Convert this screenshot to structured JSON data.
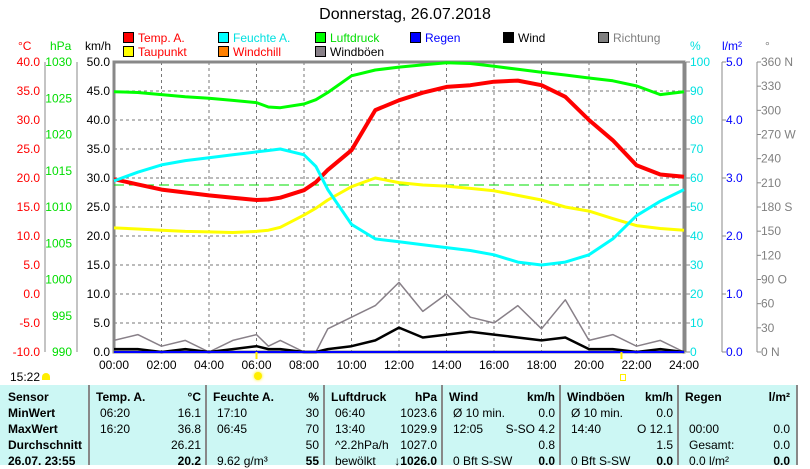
{
  "title": "Donnerstag, 26.07.2018",
  "legend": [
    {
      "label": "Temp. A.",
      "color": "#ff0000",
      "text_color": "#ff0000"
    },
    {
      "label": "Taupunkt",
      "color": "#ffff00",
      "text_color": "#ff0000"
    },
    {
      "label": "Feuchte A.",
      "color": "#00ffff",
      "text_color": "#00e0e0"
    },
    {
      "label": "Windchill",
      "color": "#ff8000",
      "text_color": "#ff0000"
    },
    {
      "label": "Luftdruck",
      "color": "#00ff00",
      "text_color": "#00dd00"
    },
    {
      "label": "Windböen",
      "color": "#888088",
      "text_color": "#000000"
    },
    {
      "label": "Regen",
      "color": "#0000ff",
      "text_color": "#0000ff"
    },
    {
      "label": "Wind",
      "color": "#000000",
      "text_color": "#000000"
    },
    {
      "label": "Richtung",
      "color": "#808080",
      "text_color": "#808080"
    }
  ],
  "chart_data": {
    "type": "line",
    "title": "Donnerstag, 26.07.2018",
    "x_unit": "hours",
    "xlim": [
      0,
      24
    ],
    "x_ticks": [
      "00:00",
      "02:00",
      "04:00",
      "06:00",
      "08:00",
      "10:00",
      "12:00",
      "14:00",
      "16:00",
      "18:00",
      "20:00",
      "22:00",
      "24:00"
    ],
    "axes": {
      "temp": {
        "unit": "°C",
        "ylim": [
          -10,
          40
        ],
        "ticks": [
          "40.0",
          "35.0",
          "30.0",
          "25.0",
          "20.0",
          "15.0",
          "10.0",
          "5.0",
          "0.0",
          "-5.0",
          "-10.0"
        ],
        "color": "#ff0000"
      },
      "pressure": {
        "unit": "hPa",
        "ylim": [
          990,
          1030
        ],
        "ticks": [
          "1030",
          "1025",
          "1020",
          "1015",
          "1010",
          "1005",
          "1000",
          "995",
          "990"
        ],
        "color": "#00dd00"
      },
      "wind": {
        "unit": "km/h",
        "ylim": [
          0,
          50
        ],
        "ticks": [
          "50.0",
          "45.0",
          "40.0",
          "35.0",
          "30.0",
          "25.0",
          "20.0",
          "15.0",
          "10.0",
          "5.0",
          "0.0"
        ],
        "color": "#000000"
      },
      "humidity": {
        "unit": "%",
        "ylim": [
          0,
          100
        ],
        "ticks": [
          "100",
          "90",
          "80",
          "70",
          "60",
          "50",
          "40",
          "30",
          "20",
          "10",
          "0"
        ],
        "color": "#00e0e0"
      },
      "rain": {
        "unit": "l/m²",
        "ylim": [
          0,
          5
        ],
        "ticks": [
          "5.0",
          "4.0",
          "3.0",
          "2.0",
          "1.0",
          "0.0"
        ],
        "color": "#0000ff"
      },
      "direction": {
        "unit": "°",
        "ylim": [
          0,
          360
        ],
        "ticks": [
          "360 N",
          "330",
          "300",
          "270 W",
          "240",
          "210",
          "180 S",
          "150",
          "120",
          "90  O",
          "60",
          "30",
          "0   N"
        ],
        "color": "#808080"
      }
    },
    "x": [
      0,
      1,
      2,
      3,
      4,
      5,
      6,
      6.5,
      7,
      8,
      8.5,
      9,
      10,
      11,
      12,
      13,
      14,
      15,
      16,
      17,
      18,
      19,
      20,
      21,
      22,
      23,
      24
    ],
    "series": [
      {
        "name": "Luftdruck",
        "axis": "pressure",
        "color": "#00ff00",
        "values": [
          1025.9,
          1025.8,
          1025.5,
          1025.2,
          1025.0,
          1024.7,
          1024.4,
          1023.8,
          1023.7,
          1024.2,
          1024.8,
          1025.8,
          1028.1,
          1028.9,
          1029.3,
          1029.6,
          1029.9,
          1029.8,
          1029.4,
          1029.0,
          1028.6,
          1028.2,
          1027.8,
          1027.4,
          1026.7,
          1025.5,
          1025.9
        ]
      },
      {
        "name": "Temp. A.",
        "axis": "temp",
        "color": "#ff0000",
        "values": [
          19.8,
          18.9,
          18.0,
          17.5,
          17.0,
          16.6,
          16.2,
          16.3,
          16.6,
          17.9,
          19.3,
          21.4,
          24.8,
          31.7,
          33.4,
          34.7,
          35.7,
          36.0,
          36.6,
          36.8,
          36.0,
          34.0,
          30.0,
          26.5,
          22.2,
          20.6,
          20.2
        ]
      },
      {
        "name": "Taupunkt",
        "axis": "temp",
        "color": "#ffff00",
        "values": [
          11.4,
          11.2,
          11.0,
          10.8,
          10.7,
          10.6,
          10.8,
          11.0,
          11.5,
          13.6,
          14.8,
          16.2,
          18.5,
          20.0,
          19.2,
          18.8,
          18.6,
          18.2,
          17.8,
          17.0,
          16.2,
          15.0,
          14.3,
          13.0,
          11.8,
          11.3,
          11.0
        ]
      },
      {
        "name": "Feuchte A.",
        "axis": "humidity",
        "color": "#00ffff",
        "values": [
          59,
          62,
          64.5,
          66,
          67,
          68,
          69,
          69.5,
          70,
          68,
          64,
          56,
          44,
          39,
          38,
          37,
          36,
          35,
          33.5,
          31,
          30,
          31,
          33.5,
          39,
          47,
          52,
          56
        ]
      },
      {
        "name": "Windböen",
        "axis": "wind",
        "color": "#888088",
        "values": [
          2,
          3,
          1,
          2,
          0,
          2,
          3,
          1,
          2,
          0,
          0,
          4,
          6,
          8,
          12,
          7,
          10,
          6,
          5,
          8,
          4,
          9,
          2,
          3,
          1,
          2,
          0
        ]
      },
      {
        "name": "Wind",
        "axis": "wind",
        "color": "#000000",
        "values": [
          0.5,
          0.5,
          0,
          0.5,
          0,
          0.5,
          1,
          0.5,
          0.5,
          0,
          0,
          0.5,
          1,
          2,
          4.2,
          2.5,
          3,
          3.5,
          3,
          2.5,
          2,
          2.5,
          0.5,
          0.5,
          0,
          0.5,
          0
        ]
      },
      {
        "name": "Regen",
        "axis": "rain",
        "color": "#0000ff",
        "values": [
          0,
          0,
          0,
          0,
          0,
          0,
          0,
          0,
          0,
          0,
          0,
          0,
          0,
          0,
          0,
          0,
          0,
          0,
          0,
          0,
          0,
          0,
          0,
          0,
          0,
          0,
          0
        ]
      }
    ],
    "reference_line": {
      "axis": "temp",
      "value": 18.8,
      "color": "#00dd00"
    },
    "sunrise": "06:00",
    "sunset": "21:22",
    "grid": true
  },
  "time_label": "15:22",
  "table": {
    "columns": [
      {
        "name": "Sensor",
        "unit": ""
      },
      {
        "name": "Temp. A.",
        "unit": "°C"
      },
      {
        "name": "Feuchte A.",
        "unit": "%"
      },
      {
        "name": "Luftdruck",
        "unit": "hPa"
      },
      {
        "name": "Wind",
        "unit": "km/h"
      },
      {
        "name": "Windböen",
        "unit": "km/h"
      },
      {
        "name": "Regen",
        "unit": "l/m²"
      }
    ],
    "rows": [
      {
        "label": "MinWert",
        "cells": [
          [
            "06:20",
            "16.1"
          ],
          [
            "17:10",
            "30"
          ],
          [
            "06:40",
            "1023.6"
          ],
          [
            "Ø 10 min.",
            "0.0"
          ],
          [
            "Ø 10 min.",
            "0.0"
          ],
          [
            "",
            ""
          ]
        ]
      },
      {
        "label": "MaxWert",
        "cells": [
          [
            "16:20",
            "36.8"
          ],
          [
            "06:45",
            "70"
          ],
          [
            "13:40",
            "1029.9"
          ],
          [
            "12:05",
            "S-SO 4.2"
          ],
          [
            "14:40",
            "O 12.1"
          ],
          [
            "00:00",
            "0.0"
          ]
        ]
      },
      {
        "label": "Durchschnitt",
        "cells": [
          [
            "",
            "26.21"
          ],
          [
            "",
            "50"
          ],
          [
            "^2.2hPa/h",
            "1027.0"
          ],
          [
            "",
            "0.8"
          ],
          [
            "",
            "1.5"
          ],
          [
            "Gesamt:",
            "0.0"
          ]
        ]
      },
      {
        "label": "26.07. 23:55",
        "cells": [
          [
            "",
            "20.2"
          ],
          [
            "9.62 g/m³",
            "55"
          ],
          [
            "bewölkt",
            "↓1026.0"
          ],
          [
            "0 Bft S-SW",
            "0.0"
          ],
          [
            "0 Bft S-SW",
            "0.0"
          ],
          [
            "0.0 l/m²",
            "0.0"
          ]
        ]
      }
    ]
  }
}
